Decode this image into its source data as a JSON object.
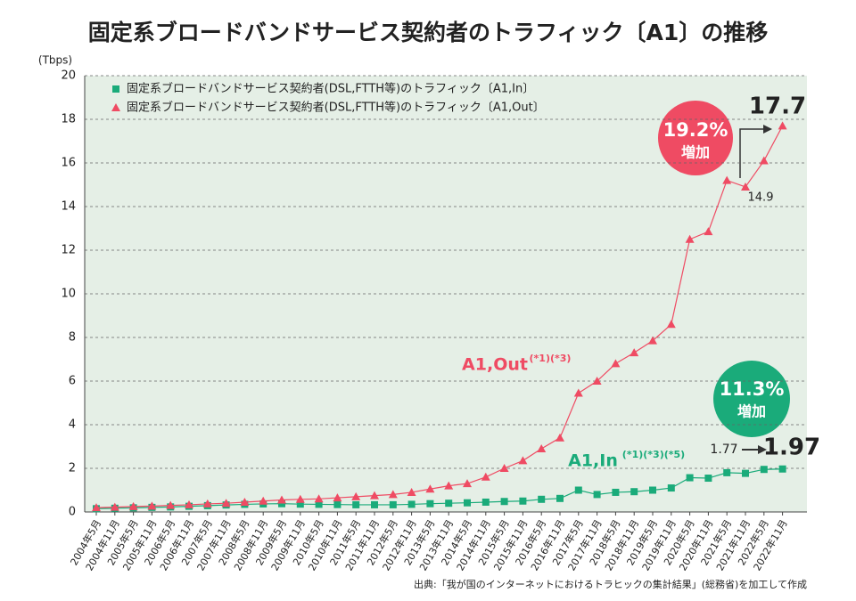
{
  "chart_data": {
    "type": "line",
    "title": "固定系ブロードバンドサービス契約者のトラフィック〔A1〕の推移",
    "y_unit": "(Tbps)",
    "categories": [
      "2004年5月",
      "2004年11月",
      "2005年5月",
      "2005年11月",
      "2006年5月",
      "2006年11月",
      "2007年5月",
      "2007年11月",
      "2008年5月",
      "2008年11月",
      "2009年5月",
      "2009年11月",
      "2010年5月",
      "2010年11月",
      "2011年5月",
      "2011年11月",
      "2012年5月",
      "2012年11月",
      "2013年5月",
      "2013年11月",
      "2014年5月",
      "2014年11月",
      "2015年5月",
      "2015年11月",
      "2016年5月",
      "2016年11月",
      "2017年5月",
      "2017年11月",
      "2018年5月",
      "2018年11月",
      "2019年5月",
      "2019年11月",
      "2020年5月",
      "2020年11月",
      "2021年5月",
      "2021年11月",
      "2022年5月",
      "2022年11月"
    ],
    "series": [
      {
        "name": "固定系ブロードバンドサービス契約者(DSL,FTTH等)のトラフィック〔A1,In〕",
        "color": "#1aab7a",
        "marker": "square",
        "values": [
          0.15,
          0.17,
          0.19,
          0.21,
          0.23,
          0.26,
          0.29,
          0.32,
          0.35,
          0.37,
          0.38,
          0.36,
          0.35,
          0.34,
          0.33,
          0.33,
          0.33,
          0.35,
          0.38,
          0.4,
          0.42,
          0.45,
          0.48,
          0.5,
          0.58,
          0.62,
          1.0,
          0.8,
          0.9,
          0.93,
          1.0,
          1.1,
          1.57,
          1.55,
          1.8,
          1.77,
          1.95,
          1.97
        ]
      },
      {
        "name": "固定系ブロードバンドサービス契約者(DSL,FTTH等)のトラフィック〔A1,Out〕",
        "color": "#ef4b63",
        "marker": "triangle",
        "values": [
          0.2,
          0.22,
          0.25,
          0.27,
          0.3,
          0.33,
          0.37,
          0.4,
          0.45,
          0.5,
          0.55,
          0.58,
          0.6,
          0.65,
          0.7,
          0.75,
          0.8,
          0.9,
          1.05,
          1.2,
          1.3,
          1.6,
          2.0,
          2.35,
          2.9,
          3.4,
          5.45,
          6.0,
          6.8,
          7.3,
          7.85,
          8.6,
          12.5,
          12.85,
          15.2,
          14.9,
          16.1,
          17.7
        ]
      }
    ],
    "ylim": [
      0,
      20
    ],
    "yticks": [
      0,
      2,
      4,
      6,
      8,
      10,
      12,
      14,
      16,
      18,
      20
    ],
    "grid": true,
    "annotations": [
      "19.2%",
      "増加",
      "17.7",
      "14.9",
      "A1,Out",
      "(*1)(*3)",
      "11.3%",
      "増加",
      "1.77",
      "1.97",
      "A1,In",
      "(*1)(*3)(*5)"
    ],
    "source": "出典:「我が国のインターネットにおけるトラヒックの集計結果」(総務省)を加工して作成"
  }
}
